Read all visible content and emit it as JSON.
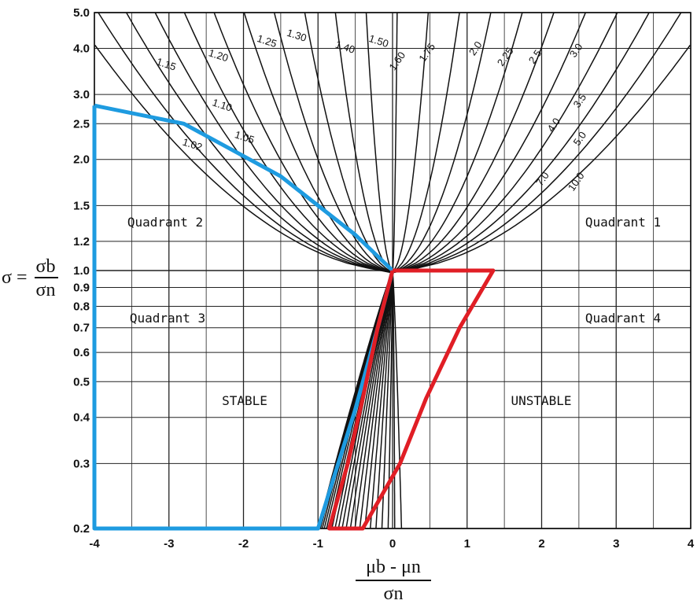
{
  "chart_data": {
    "type": "line",
    "y_scale": "log",
    "xlim": [
      -4,
      4
    ],
    "ylim": [
      0.2,
      5.0
    ],
    "grid": true,
    "x_ticks": [
      "-4",
      "-3",
      "-2",
      "-1",
      "0",
      "1",
      "2",
      "3",
      "4"
    ],
    "x_tick_values": [
      -4,
      -3,
      -2,
      -1,
      0,
      1,
      2,
      3,
      4
    ],
    "y_ticks": [
      "0.2",
      "0.3",
      "0.4",
      "0.5",
      "0.6",
      "0.7",
      "0.8",
      "0.9",
      "1.0",
      "1.2",
      "1.5",
      "2.0",
      "2.5",
      "3.0",
      "4.0",
      "5.0"
    ],
    "y_tick_values": [
      0.2,
      0.3,
      0.4,
      0.5,
      0.6,
      0.7,
      0.8,
      0.9,
      1.0,
      1.2,
      1.5,
      2.0,
      2.5,
      3.0,
      4.0,
      5.0
    ],
    "xlabel": {
      "numerator": "μb - μn",
      "denominator": "σn"
    },
    "ylabel": {
      "symbol": "σ =",
      "numerator": "σb",
      "denominator": "σn"
    },
    "curve_labels": [
      "1.02",
      "1.05",
      "1.10",
      "1.15",
      "1.20",
      "1.25",
      "1.30",
      "1.40",
      "1.50",
      "1.60",
      "1.75",
      "2.0",
      "2.25",
      "2.5",
      "3.0",
      "3.5",
      "4.0",
      "5.0",
      "7.0",
      "10.0"
    ],
    "regions": {
      "q2": "Quadrant 2",
      "q1": "Quadrant 1",
      "q3": "Quadrant 3",
      "q4": "Quadrant 4",
      "stable": "STABLE",
      "unstable": "UNSTABLE"
    },
    "overlays": [
      {
        "color": "#1e9be0",
        "points": [
          [
            -4,
            2.8
          ],
          [
            -2.8,
            2.5
          ],
          [
            -1.5,
            1.8
          ],
          [
            -1.0,
            1.5
          ],
          [
            -0.5,
            1.25
          ],
          [
            0,
            1.0
          ],
          [
            -0.2,
            0.7
          ],
          [
            -0.5,
            0.42
          ],
          [
            -0.8,
            0.27
          ],
          [
            -1.0,
            0.2
          ],
          [
            -4,
            0.2
          ],
          [
            -4,
            2.8
          ]
        ]
      },
      {
        "color": "#e01e25",
        "points": [
          [
            0,
            1.0
          ],
          [
            1.35,
            1.0
          ],
          [
            0.9,
            0.7
          ],
          [
            0.45,
            0.45
          ],
          [
            0.1,
            0.3
          ],
          [
            -0.4,
            0.2
          ],
          [
            -0.85,
            0.2
          ],
          [
            -0.6,
            0.3
          ],
          [
            -0.4,
            0.45
          ],
          [
            -0.2,
            0.7
          ],
          [
            0,
            1.0
          ]
        ]
      }
    ]
  }
}
